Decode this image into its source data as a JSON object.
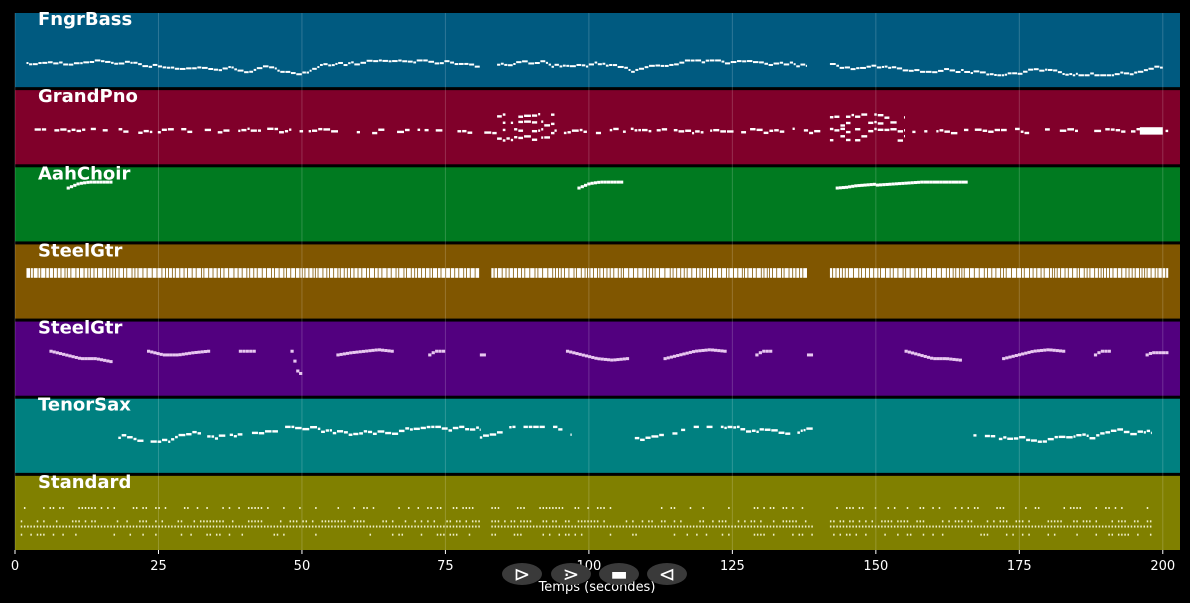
{
  "chart_data": {
    "type": "piano-roll",
    "xlabel": "Temps (secondes)",
    "xlim": [
      0,
      203
    ],
    "xticks": [
      0,
      25,
      50,
      75,
      100,
      125,
      150,
      175,
      200
    ],
    "grid": true,
    "tracks": [
      {
        "name": "FngrBass",
        "color": "#005a80",
        "note_color": "#ffffff",
        "style": "dense",
        "pitch_range": [
          0.16,
          0.36
        ],
        "segments": [
          [
            2,
            81
          ],
          [
            84,
            138
          ],
          [
            142,
            200
          ]
        ]
      },
      {
        "name": "GrandPno",
        "color": "#80002a",
        "note_color": "#ffffff",
        "style": "chords",
        "pitch_range": [
          0.25,
          0.72
        ],
        "segments": [
          [
            1,
            84
          ],
          [
            84,
            94
          ],
          [
            94,
            142
          ],
          [
            142,
            155
          ],
          [
            155,
            201
          ]
        ],
        "blocks": [
          [
            196,
            200
          ]
        ]
      },
      {
        "name": "AahChoir",
        "color": "#007a20",
        "note_color": "#ffffff",
        "style": "phrases",
        "phrases": [
          {
            "start": 9,
            "end": 17,
            "shape": [
              0.72,
              0.78,
              0.8,
              0.8,
              0.8
            ]
          },
          {
            "start": 98,
            "end": 106,
            "shape": [
              0.72,
              0.78,
              0.8,
              0.8,
              0.8
            ]
          },
          {
            "start": 143,
            "end": 150,
            "shape": [
              0.72,
              0.73,
              0.75,
              0.76,
              0.77
            ]
          },
          {
            "start": 150,
            "end": 166,
            "shape": [
              0.76,
              0.78,
              0.8,
              0.8,
              0.8
            ]
          }
        ]
      },
      {
        "name": "SteelGtr",
        "color": "#805600",
        "note_color": "#ffffff",
        "style": "strum",
        "pitch_range": [
          0.55,
          0.68
        ],
        "segments": [
          [
            2,
            81
          ],
          [
            83,
            138
          ],
          [
            142,
            201
          ]
        ]
      },
      {
        "name": "SteelGtr",
        "color": "#52007f",
        "note_color": "#e8c8f0",
        "style": "phrases",
        "phrases": [
          {
            "start": 6,
            "end": 17,
            "shape": [
              0.6,
              0.55,
              0.5,
              0.5,
              0.46
            ]
          },
          {
            "start": 23,
            "end": 34,
            "shape": [
              0.6,
              0.55,
              0.55,
              0.58,
              0.6
            ]
          },
          {
            "start": 39,
            "end": 42,
            "shape": [
              0.6,
              0.6,
              0.6,
              0.6,
              0.6
            ]
          },
          {
            "start": 48,
            "end": 50,
            "shape": [
              0.6,
              0.5,
              0.4,
              0.3,
              0.3
            ]
          },
          {
            "start": 56,
            "end": 66,
            "shape": [
              0.55,
              0.58,
              0.6,
              0.62,
              0.6
            ]
          },
          {
            "start": 72,
            "end": 75,
            "shape": [
              0.55,
              0.58,
              0.6,
              0.6,
              0.6
            ]
          },
          {
            "start": 81,
            "end": 82,
            "shape": [
              0.55,
              0.55,
              0.55,
              0.55,
              0.55
            ]
          },
          {
            "start": 96,
            "end": 107,
            "shape": [
              0.6,
              0.55,
              0.5,
              0.48,
              0.5
            ]
          },
          {
            "start": 113,
            "end": 124,
            "shape": [
              0.5,
              0.55,
              0.6,
              0.62,
              0.6
            ]
          },
          {
            "start": 129,
            "end": 132,
            "shape": [
              0.55,
              0.58,
              0.6,
              0.6,
              0.6
            ]
          },
          {
            "start": 138,
            "end": 139,
            "shape": [
              0.55,
              0.55,
              0.55,
              0.55,
              0.55
            ]
          },
          {
            "start": 155,
            "end": 165,
            "shape": [
              0.6,
              0.55,
              0.5,
              0.5,
              0.48
            ]
          },
          {
            "start": 172,
            "end": 183,
            "shape": [
              0.5,
              0.55,
              0.6,
              0.62,
              0.6
            ]
          },
          {
            "start": 188,
            "end": 191,
            "shape": [
              0.55,
              0.58,
              0.6,
              0.6,
              0.6
            ]
          },
          {
            "start": 197,
            "end": 201,
            "shape": [
              0.55,
              0.58,
              0.58,
              0.58,
              0.58
            ]
          }
        ]
      },
      {
        "name": "TenorSax",
        "color": "#008080",
        "note_color": "#ffffff",
        "style": "sax",
        "pitch_range": [
          0.42,
          0.62
        ],
        "segments": [
          [
            18,
            81
          ],
          [
            81,
            97
          ],
          [
            108,
            139
          ],
          [
            167,
            198
          ]
        ]
      },
      {
        "name": "Standard",
        "color": "#808000",
        "note_color": "#f0f0c8",
        "style": "drums",
        "pitch_range": [
          0.2,
          0.58
        ],
        "segments": [
          [
            1,
            81
          ],
          [
            83,
            139
          ],
          [
            142,
            198
          ]
        ]
      }
    ]
  },
  "controls": {
    "play": "⊳",
    "forward": "⋗",
    "stop": "▬",
    "rewind": "⊲"
  }
}
